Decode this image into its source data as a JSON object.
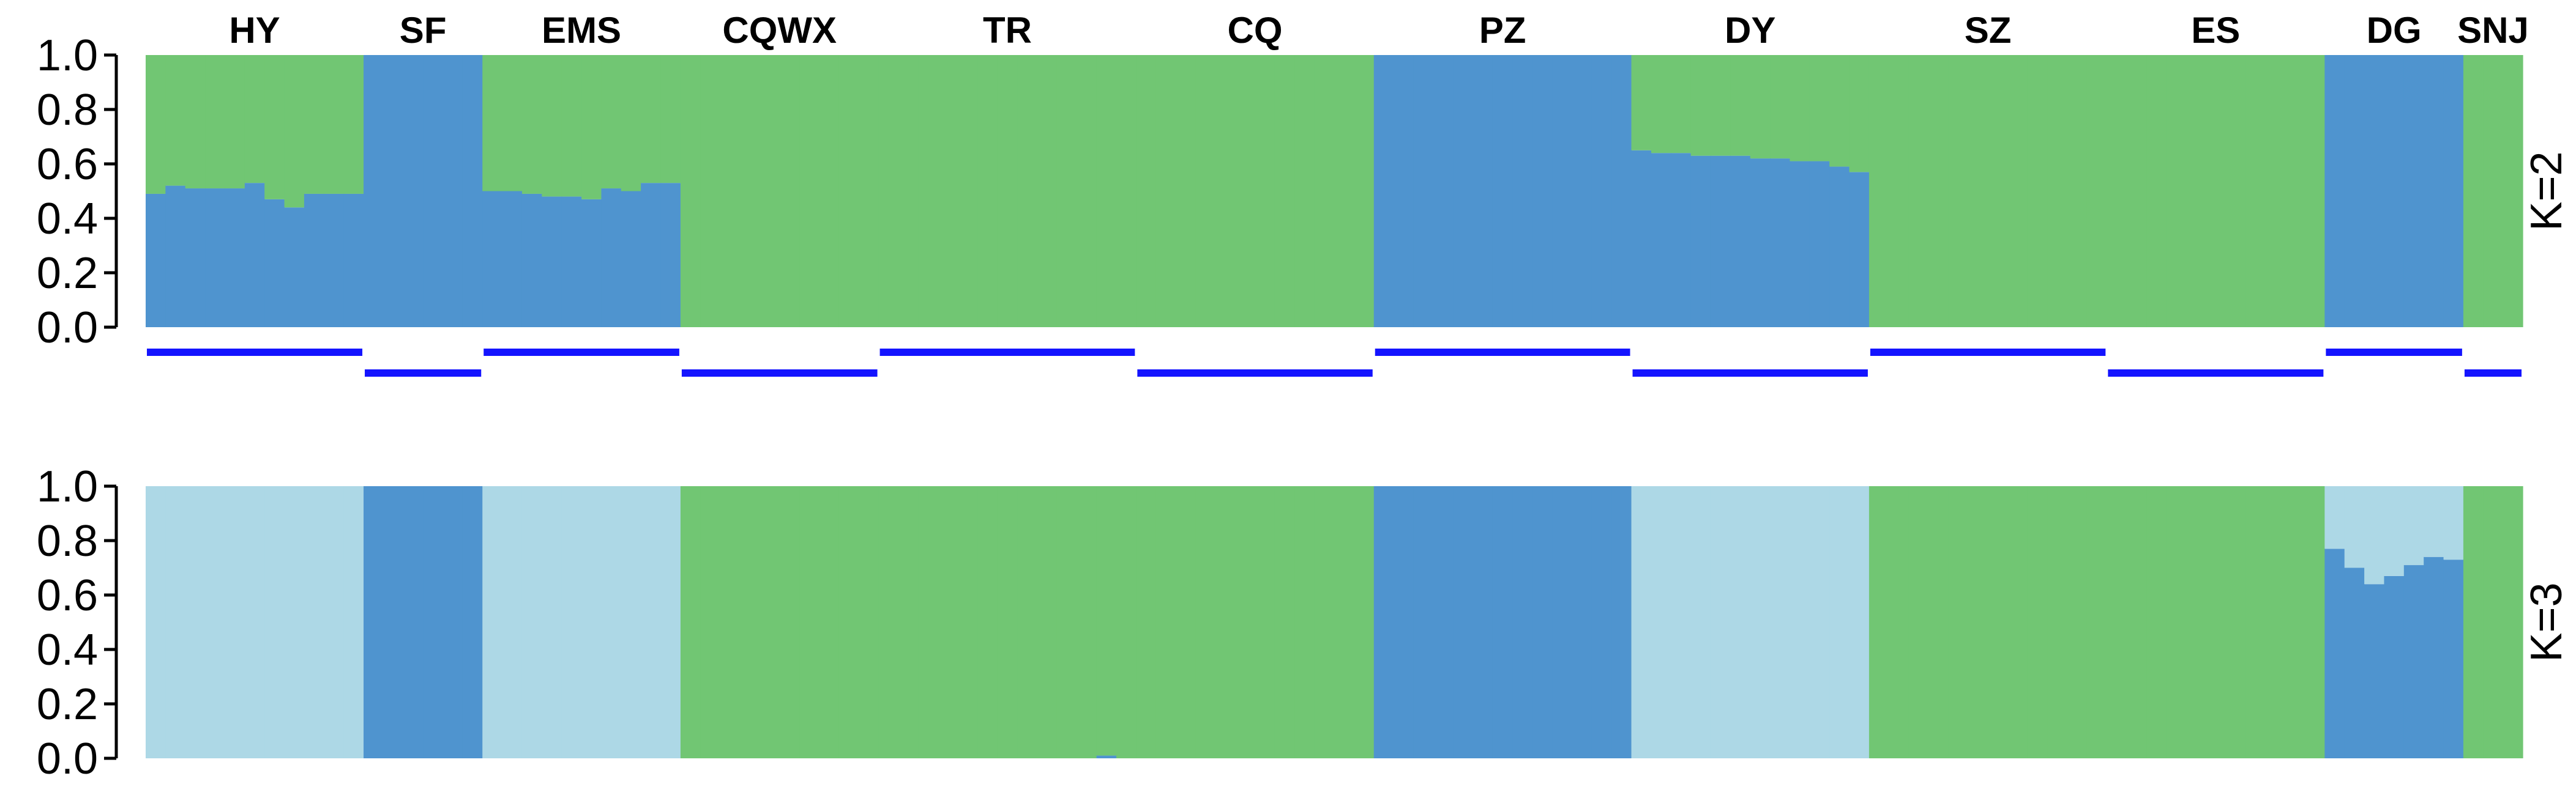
{
  "colors": {
    "green": "#71c673",
    "blue": "#4f94cf",
    "lightblue": "#add8e6",
    "separator": "#1414ff"
  },
  "chart_data": {
    "type": "bar",
    "stacked": true,
    "xlabel": "",
    "ylabel": "",
    "populations": [
      {
        "name": "HY",
        "individuals": 11
      },
      {
        "name": "SF",
        "individuals": 6
      },
      {
        "name": "EMS",
        "individuals": 10
      },
      {
        "name": "CQWX",
        "individuals": 10
      },
      {
        "name": "TR",
        "individuals": 13
      },
      {
        "name": "CQ",
        "individuals": 12
      },
      {
        "name": "PZ",
        "individuals": 13
      },
      {
        "name": "DY",
        "individuals": 12
      },
      {
        "name": "SZ",
        "individuals": 12
      },
      {
        "name": "ES",
        "individuals": 11
      },
      {
        "name": "DG",
        "individuals": 7
      },
      {
        "name": "SNJ",
        "individuals": 3
      }
    ],
    "panels": [
      {
        "label": "K=2",
        "ylim": [
          0,
          1
        ],
        "yticks": [
          "1.0",
          "0.8",
          "0.6",
          "0.4",
          "0.2",
          "0.0"
        ],
        "bars": {
          "HY": [
            {
              "color": "blue",
              "values": [
                0.49,
                0.52,
                0.51,
                0.51,
                0.51,
                0.53,
                0.47,
                0.44,
                0.49,
                0.49,
                0.49
              ]
            },
            {
              "color": "green",
              "values": "remainder"
            }
          ],
          "SF": [
            {
              "color": "blue",
              "values": [
                1,
                1,
                1,
                1,
                1,
                1
              ]
            }
          ],
          "EMS": [
            {
              "color": "blue",
              "values": [
                0.5,
                0.5,
                0.49,
                0.48,
                0.48,
                0.47,
                0.51,
                0.5,
                0.53,
                0.53
              ]
            },
            {
              "color": "green",
              "values": "remainder"
            }
          ],
          "CQWX": [
            {
              "color": "green",
              "values": [
                1,
                1,
                1,
                1,
                1,
                1,
                1,
                1,
                1,
                1
              ]
            }
          ],
          "TR": [
            {
              "color": "green",
              "values": [
                1,
                1,
                1,
                1,
                1,
                1,
                1,
                1,
                1,
                1,
                1,
                1,
                1
              ]
            }
          ],
          "CQ": [
            {
              "color": "green",
              "values": [
                1,
                1,
                1,
                1,
                1,
                1,
                1,
                1,
                1,
                1,
                1,
                1
              ]
            }
          ],
          "PZ": [
            {
              "color": "blue",
              "values": [
                1,
                1,
                1,
                1,
                1,
                1,
                1,
                1,
                1,
                1,
                1,
                1,
                1
              ]
            }
          ],
          "DY": [
            {
              "color": "blue",
              "values": [
                0.65,
                0.64,
                0.64,
                0.63,
                0.63,
                0.63,
                0.62,
                0.62,
                0.61,
                0.61,
                0.59,
                0.57
              ]
            },
            {
              "color": "green",
              "values": "remainder"
            }
          ],
          "SZ": [
            {
              "color": "green",
              "values": [
                1,
                1,
                1,
                1,
                1,
                1,
                1,
                1,
                1,
                1,
                1,
                1
              ]
            }
          ],
          "ES": [
            {
              "color": "green",
              "values": [
                1,
                1,
                1,
                1,
                1,
                1,
                1,
                1,
                1,
                1,
                1
              ]
            }
          ],
          "DG": [
            {
              "color": "blue",
              "values": [
                1,
                1,
                1,
                1,
                1,
                1,
                1
              ]
            }
          ],
          "SNJ": [
            {
              "color": "green",
              "values": [
                1,
                1,
                1
              ]
            }
          ]
        }
      },
      {
        "label": "K=3",
        "ylim": [
          0,
          1
        ],
        "yticks": [
          "1.0",
          "0.8",
          "0.6",
          "0.4",
          "0.2",
          "0.0"
        ],
        "bars": {
          "HY": [
            {
              "color": "lightblue",
              "values": [
                1,
                1,
                1,
                1,
                1,
                1,
                1,
                1,
                1,
                1,
                1
              ]
            }
          ],
          "SF": [
            {
              "color": "blue",
              "values": [
                1,
                1,
                1,
                1,
                1,
                1
              ]
            }
          ],
          "EMS": [
            {
              "color": "lightblue",
              "values": [
                1,
                1,
                1,
                1,
                1,
                1,
                1,
                1,
                1,
                1
              ]
            }
          ],
          "CQWX": [
            {
              "color": "green",
              "values": [
                1,
                1,
                1,
                1,
                1,
                1,
                1,
                1,
                1,
                1
              ]
            }
          ],
          "TR": [
            {
              "color": "blue",
              "values": [
                0,
                0,
                0,
                0,
                0,
                0,
                0,
                0,
                0,
                0,
                0,
                0.01,
                0
              ]
            },
            {
              "color": "green",
              "values": "remainder"
            }
          ],
          "CQ": [
            {
              "color": "green",
              "values": [
                1,
                1,
                1,
                1,
                1,
                1,
                1,
                1,
                1,
                1,
                1,
                1
              ]
            }
          ],
          "PZ": [
            {
              "color": "blue",
              "values": [
                1,
                1,
                1,
                1,
                1,
                1,
                1,
                1,
                1,
                1,
                1,
                1,
                1
              ]
            }
          ],
          "DY": [
            {
              "color": "lightblue",
              "values": [
                1,
                1,
                1,
                1,
                1,
                1,
                1,
                1,
                1,
                1,
                1,
                1
              ]
            }
          ],
          "SZ": [
            {
              "color": "green",
              "values": [
                1,
                1,
                1,
                1,
                1,
                1,
                1,
                1,
                1,
                1,
                1,
                1
              ]
            }
          ],
          "ES": [
            {
              "color": "green",
              "values": [
                1,
                1,
                1,
                1,
                1,
                1,
                1,
                1,
                1,
                1,
                1
              ]
            }
          ],
          "DG": [
            {
              "color": "blue",
              "values": [
                0.77,
                0.7,
                0.64,
                0.67,
                0.71,
                0.74,
                0.73
              ]
            },
            {
              "color": "lightblue",
              "values": "remainder"
            }
          ],
          "SNJ": [
            {
              "color": "green",
              "values": [
                1,
                1,
                1
              ]
            }
          ]
        }
      }
    ]
  }
}
